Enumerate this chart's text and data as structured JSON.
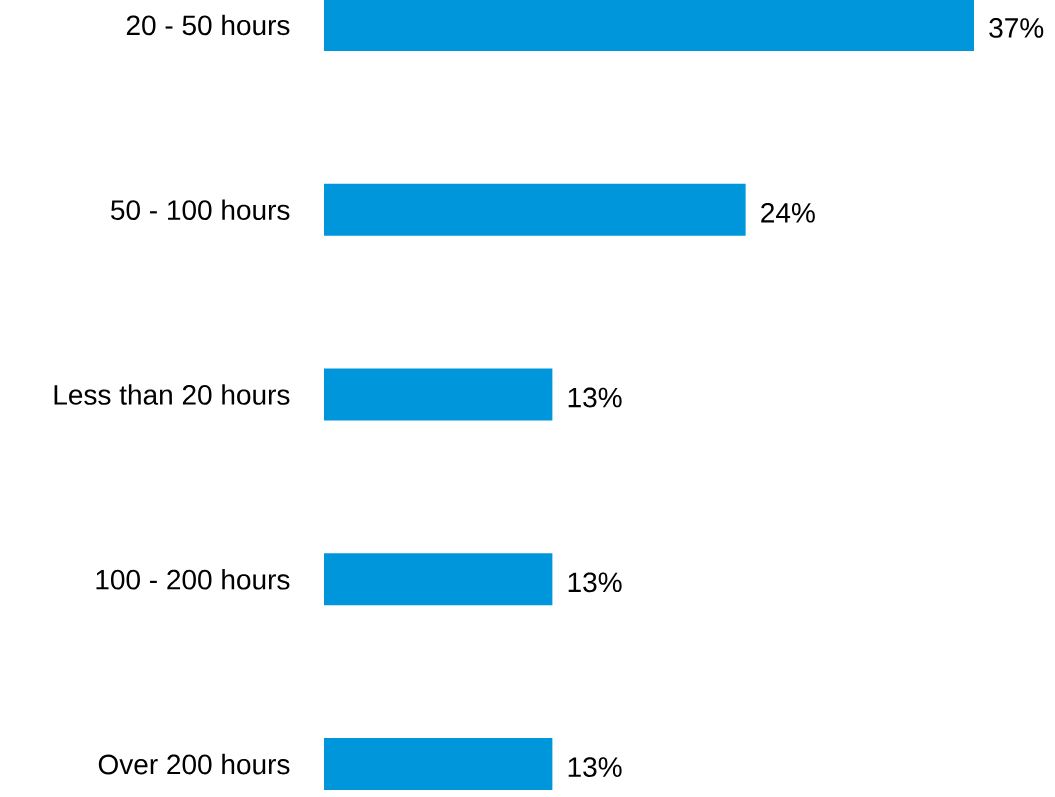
{
  "chart_data": {
    "type": "bar",
    "orientation": "horizontal",
    "categories": [
      "20 - 50 hours",
      "50 - 100 hours",
      "Less than 20 hours",
      "100 - 200 hours",
      "Over 200 hours"
    ],
    "values": [
      37,
      24,
      13,
      13,
      13
    ],
    "value_labels": [
      "37%",
      "24%",
      "13%",
      "13%",
      "13%"
    ],
    "color": "#0096dc"
  }
}
